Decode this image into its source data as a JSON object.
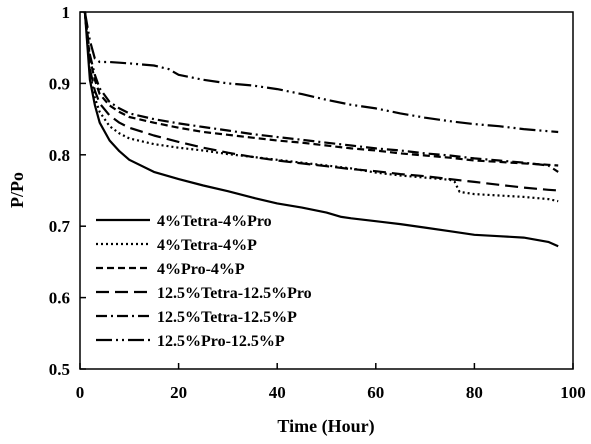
{
  "chart_data": {
    "type": "line",
    "xlabel": "Time (Hour)",
    "ylabel": "P/Po",
    "xlim": [
      0,
      100
    ],
    "ylim": [
      0.5,
      1
    ],
    "xticks": [
      0,
      20,
      40,
      60,
      80,
      100
    ],
    "yticks": [
      0.5,
      0.6,
      0.7,
      0.8,
      0.9,
      1
    ],
    "ytick_labels": [
      "0.5",
      "0.6",
      "0.7",
      "0.8",
      "0.9",
      "1"
    ],
    "grid": false,
    "legend_position": "bottom-left",
    "series": [
      {
        "name": "4%Tetra-4%Pro",
        "style": "solid",
        "x": [
          1,
          2,
          3,
          4,
          6,
          8,
          10,
          15,
          20,
          25,
          30,
          35,
          40,
          45,
          50,
          53,
          55,
          60,
          65,
          70,
          75,
          80,
          85,
          90,
          95,
          97
        ],
        "y": [
          1.0,
          0.905,
          0.87,
          0.845,
          0.82,
          0.805,
          0.793,
          0.776,
          0.766,
          0.757,
          0.749,
          0.74,
          0.732,
          0.726,
          0.719,
          0.713,
          0.711,
          0.707,
          0.703,
          0.698,
          0.693,
          0.688,
          0.686,
          0.684,
          0.678,
          0.672
        ]
      },
      {
        "name": "4%Tetra-4%P",
        "style": "dotted",
        "x": [
          1,
          2,
          3,
          4,
          6,
          8,
          10,
          15,
          20,
          25,
          30,
          35,
          40,
          45,
          50,
          55,
          60,
          65,
          70,
          75,
          76,
          77,
          80,
          85,
          90,
          95,
          97
        ],
        "y": [
          1.0,
          0.915,
          0.88,
          0.86,
          0.84,
          0.83,
          0.823,
          0.815,
          0.81,
          0.806,
          0.801,
          0.797,
          0.793,
          0.789,
          0.785,
          0.781,
          0.775,
          0.771,
          0.768,
          0.765,
          0.762,
          0.748,
          0.745,
          0.743,
          0.741,
          0.738,
          0.735
        ]
      },
      {
        "name": "4%Pro-4%P",
        "style": "short-dash",
        "x": [
          1,
          2,
          3,
          4,
          6,
          8,
          10,
          15,
          20,
          25,
          30,
          35,
          40,
          45,
          50,
          55,
          60,
          65,
          70,
          75,
          80,
          85,
          90,
          95,
          97
        ],
        "y": [
          1.0,
          0.935,
          0.905,
          0.885,
          0.869,
          0.86,
          0.853,
          0.845,
          0.838,
          0.832,
          0.828,
          0.824,
          0.82,
          0.817,
          0.813,
          0.809,
          0.806,
          0.802,
          0.799,
          0.796,
          0.792,
          0.79,
          0.788,
          0.786,
          0.785
        ]
      },
      {
        "name": "12.5%Tetra-12.5%Pro",
        "style": "long-dash",
        "x": [
          1,
          2,
          3,
          4,
          6,
          8,
          10,
          15,
          20,
          25,
          30,
          35,
          40,
          45,
          50,
          55,
          60,
          65,
          70,
          75,
          80,
          85,
          90,
          95,
          97
        ],
        "y": [
          1.0,
          0.92,
          0.89,
          0.872,
          0.855,
          0.845,
          0.838,
          0.827,
          0.818,
          0.81,
          0.803,
          0.797,
          0.792,
          0.788,
          0.784,
          0.78,
          0.777,
          0.773,
          0.77,
          0.766,
          0.762,
          0.758,
          0.754,
          0.751,
          0.75
        ]
      },
      {
        "name": "12.5%Tetra-12.5%P",
        "style": "dash-dot",
        "x": [
          1,
          2,
          3,
          4,
          6,
          8,
          10,
          15,
          20,
          25,
          30,
          35,
          40,
          45,
          50,
          55,
          60,
          65,
          70,
          75,
          80,
          85,
          90,
          95,
          97
        ],
        "y": [
          1.0,
          0.94,
          0.912,
          0.893,
          0.874,
          0.865,
          0.858,
          0.85,
          0.844,
          0.839,
          0.834,
          0.829,
          0.825,
          0.821,
          0.817,
          0.813,
          0.809,
          0.806,
          0.802,
          0.799,
          0.795,
          0.792,
          0.789,
          0.785,
          0.776
        ]
      },
      {
        "name": "12.5%Pro-12.5%P",
        "style": "dash-dot-dot",
        "x": [
          1,
          2,
          3,
          4,
          6,
          8,
          10,
          15,
          18,
          20,
          25,
          30,
          35,
          40,
          45,
          50,
          55,
          60,
          65,
          70,
          75,
          80,
          85,
          90,
          95,
          97
        ],
        "y": [
          1.0,
          0.96,
          0.935,
          0.93,
          0.93,
          0.929,
          0.928,
          0.925,
          0.92,
          0.912,
          0.905,
          0.9,
          0.897,
          0.892,
          0.885,
          0.877,
          0.87,
          0.865,
          0.858,
          0.852,
          0.847,
          0.843,
          0.84,
          0.836,
          0.833,
          0.832
        ]
      }
    ]
  }
}
